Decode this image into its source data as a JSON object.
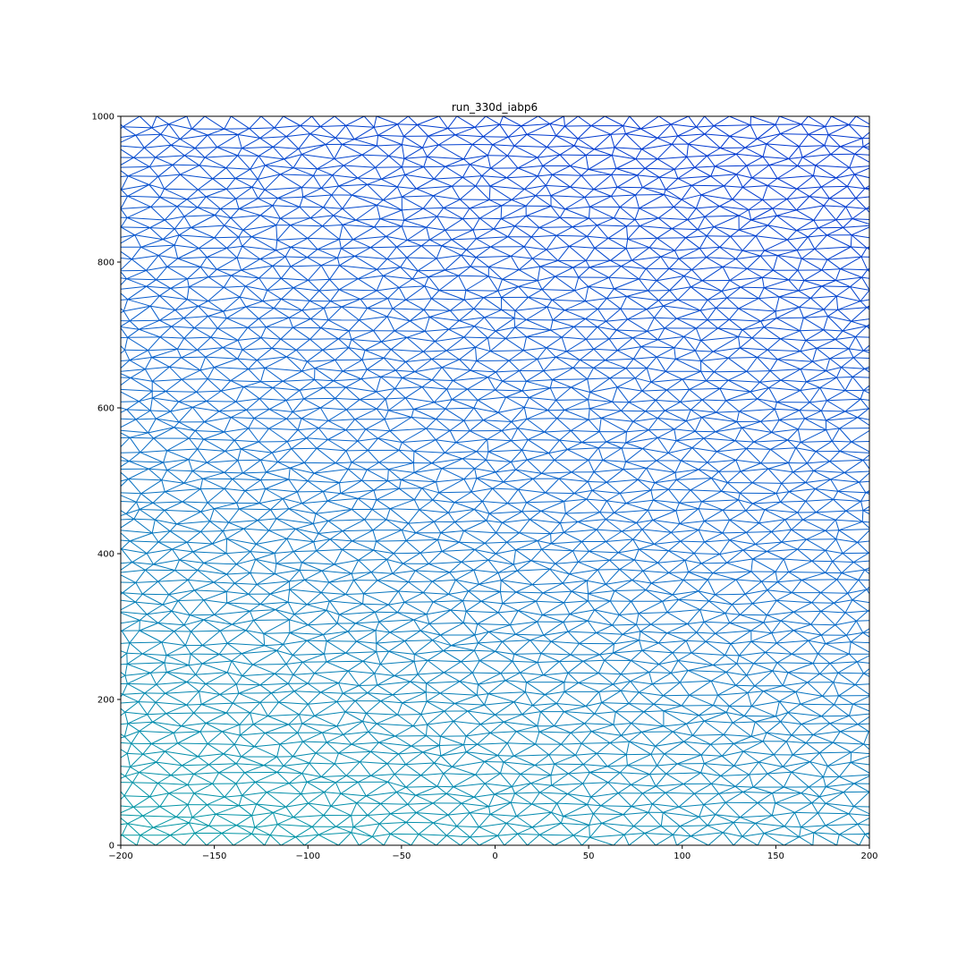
{
  "chart_data": {
    "type": "mesh",
    "title": "run_330d_iabp6",
    "xlabel": "",
    "ylabel": "",
    "xlim": [
      -200,
      200
    ],
    "ylim": [
      0,
      1000
    ],
    "x_ticks": [
      -200,
      -150,
      -100,
      -50,
      0,
      50,
      100,
      150,
      200
    ],
    "y_ticks": [
      0,
      200,
      400,
      600,
      800,
      1000
    ],
    "grid": false,
    "legend": "none",
    "mesh": {
      "description": "triangulated mesh of edges colored by position",
      "color_low": "#009aa0",
      "color_mid": "#0a66cc",
      "color_high": "#0038d0"
    }
  }
}
